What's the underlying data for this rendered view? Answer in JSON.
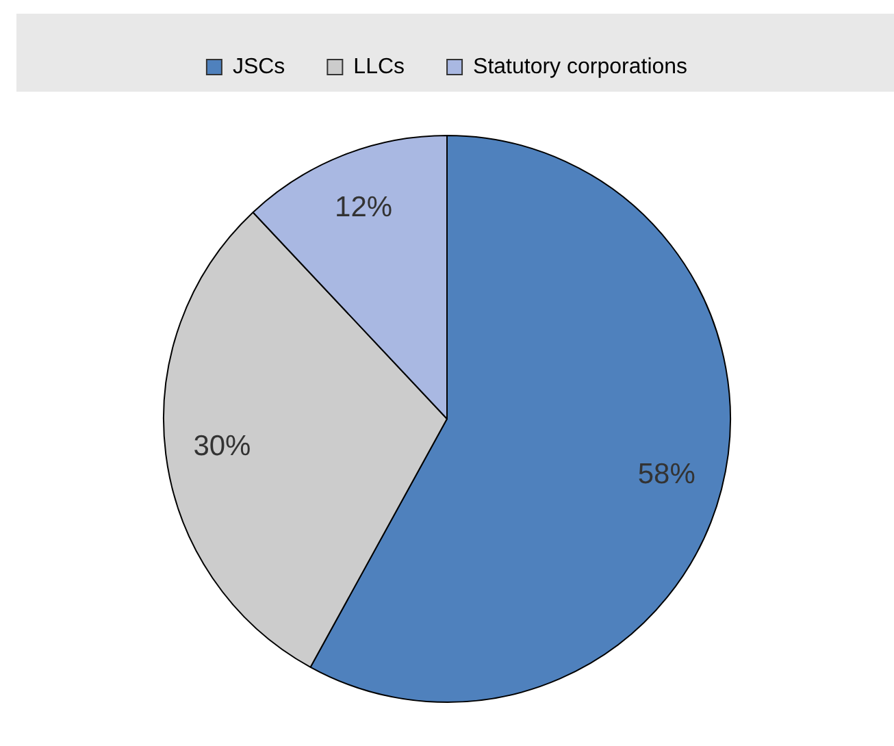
{
  "chart_data": {
    "type": "pie",
    "categories": [
      "JSCs",
      "LLCs",
      "Statutory corporations"
    ],
    "values": [
      58,
      30,
      12
    ],
    "colors": [
      "#4f81bd",
      "#cccccc",
      "#a9b8e2"
    ],
    "value_labels": [
      "58%",
      "30%",
      "12%"
    ],
    "legend": "top"
  }
}
